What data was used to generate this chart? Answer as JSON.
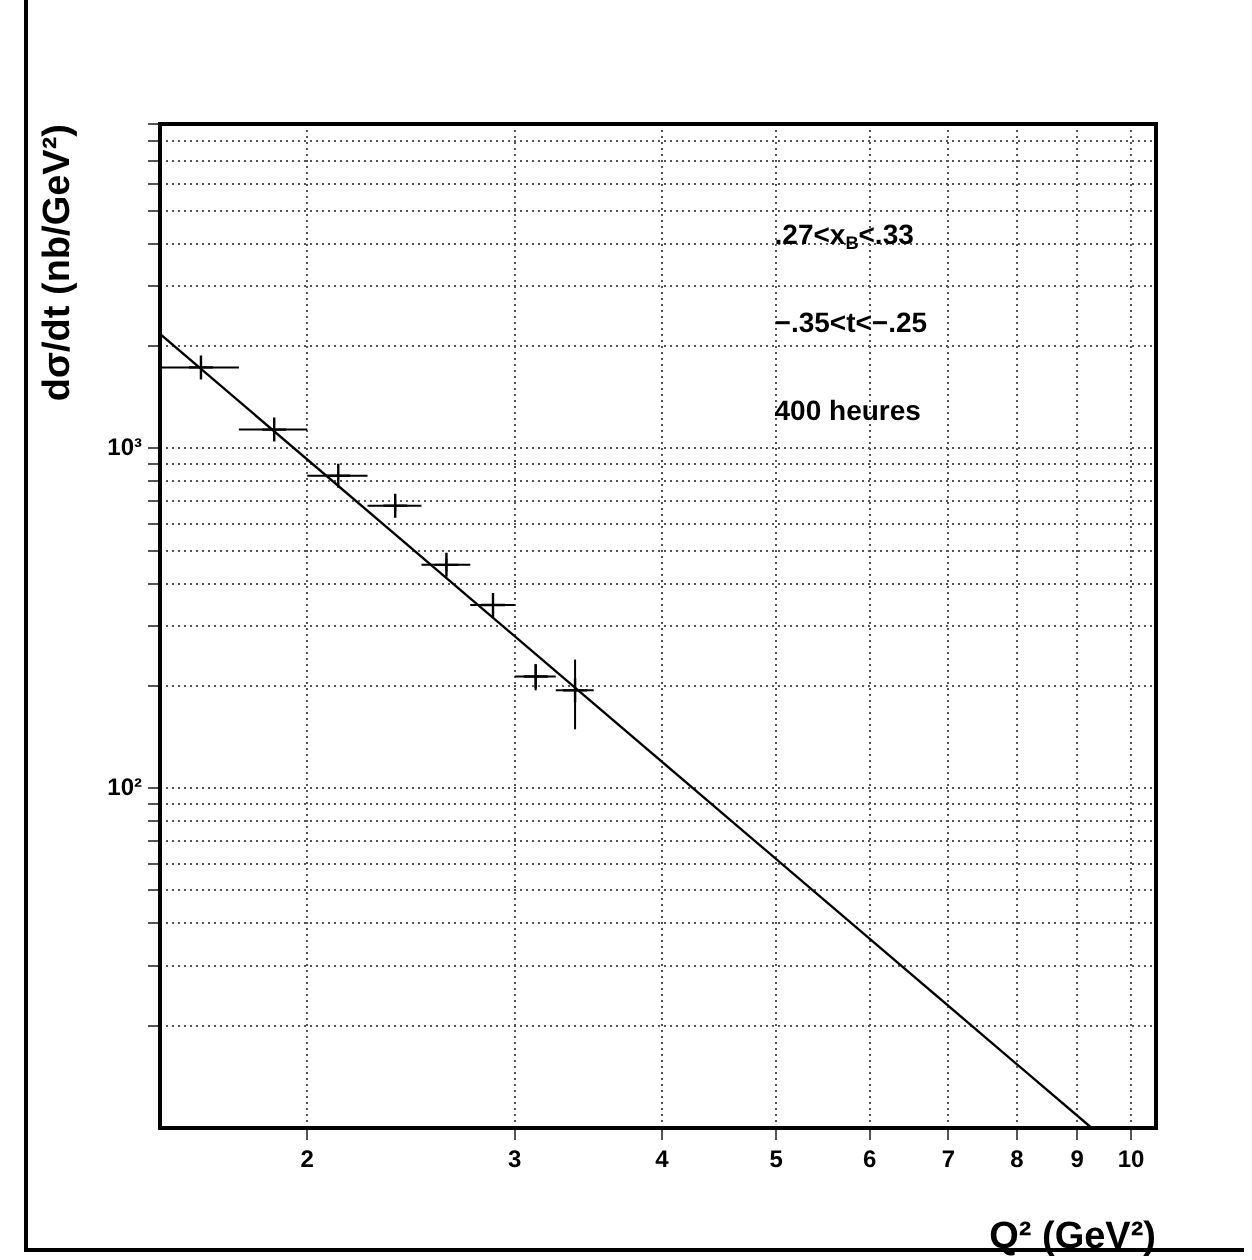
{
  "chart_data": {
    "type": "scatter",
    "xlabel": "Q² (GeV²)",
    "ylabel": "dσ/dt (nb/GeV²)",
    "annotations": [
      ".27<x$_{B}$<.33",
      "−.35<t<−.25",
      "400 heures"
    ],
    "log": "xy",
    "grid": true,
    "legend": false,
    "xlim": [
      1.5,
      10.5
    ],
    "ylim": [
      10,
      9000
    ],
    "xticks": [
      2,
      3,
      4,
      5,
      6,
      7,
      8,
      9,
      10
    ],
    "yticks": [
      {
        "value": 20,
        "label": null
      },
      {
        "value": 30,
        "label": null
      },
      {
        "value": 40,
        "label": null
      },
      {
        "value": 50,
        "label": null
      },
      {
        "value": 60,
        "label": null
      },
      {
        "value": 70,
        "label": null
      },
      {
        "value": 80,
        "label": null
      },
      {
        "value": 90,
        "label": null
      },
      {
        "value": 100,
        "label": "10²"
      },
      {
        "value": 200,
        "label": null
      },
      {
        "value": 300,
        "label": null
      },
      {
        "value": 400,
        "label": null
      },
      {
        "value": 500,
        "label": null
      },
      {
        "value": 600,
        "label": null
      },
      {
        "value": 700,
        "label": null
      },
      {
        "value": 800,
        "label": null
      },
      {
        "value": 900,
        "label": null
      },
      {
        "value": 1000,
        "label": "10³"
      },
      {
        "value": 2000,
        "label": null
      },
      {
        "value": 3000,
        "label": null
      },
      {
        "value": 4000,
        "label": null
      },
      {
        "value": 5000,
        "label": null
      },
      {
        "value": 6000,
        "label": null
      },
      {
        "value": 7000,
        "label": null
      },
      {
        "value": 8000,
        "label": null
      },
      {
        "value": 9000,
        "label": null
      }
    ],
    "series": [
      {
        "marker": "cross",
        "color": "#000000",
        "x": [
          1.625,
          1.875,
          2.125,
          2.375,
          2.625,
          2.875,
          3.125,
          3.375
        ],
        "values": [
          1730,
          1135,
          830,
          678,
          454,
          346,
          213,
          194
        ],
        "xerrors": [
          0.125,
          0.125,
          0.125,
          0.125,
          0.125,
          0.125,
          0.125,
          0.125
        ],
        "errors": [
          null,
          null,
          null,
          25,
          20,
          20,
          19,
          45
        ]
      },
      {
        "type": "line",
        "color": "#000000",
        "x": [
          1.5,
          9.26
        ],
        "values": [
          2170,
          10
        ]
      }
    ]
  }
}
